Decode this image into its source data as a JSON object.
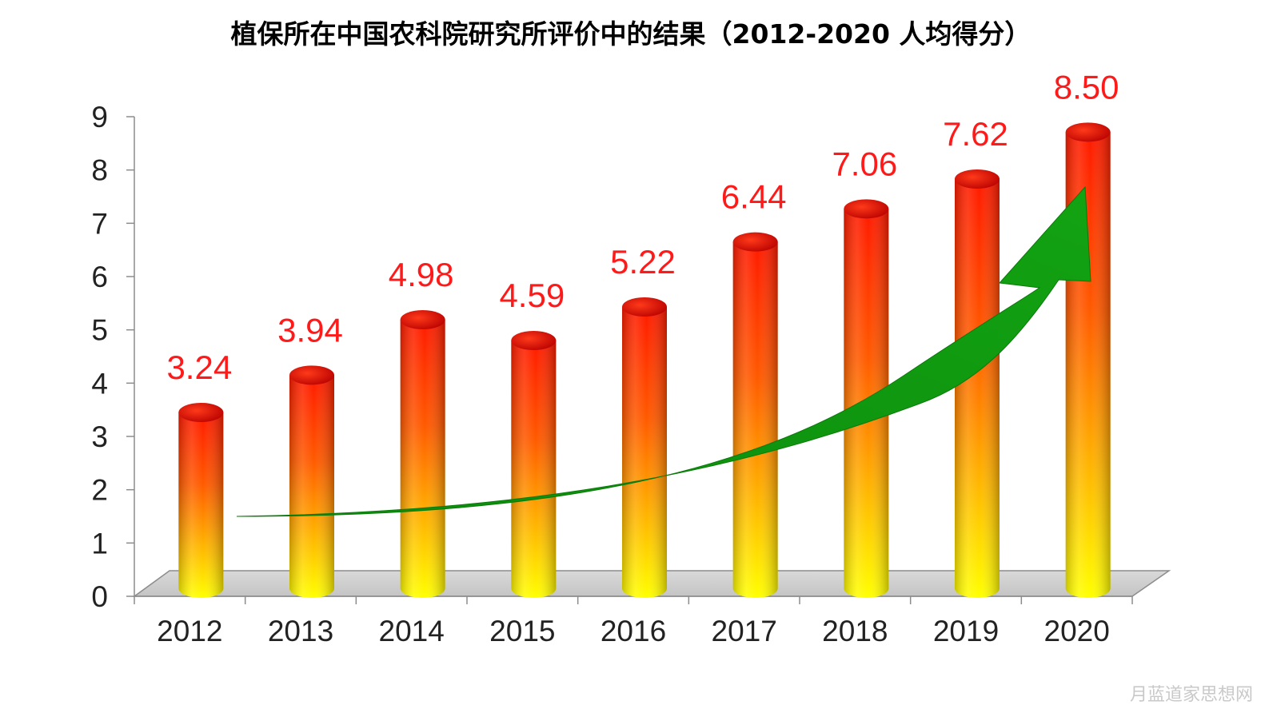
{
  "chart_data": {
    "type": "bar",
    "title": "植保所在中国农科院研究所评价中的结果（2012-2020  人均得分）",
    "categories": [
      "2012",
      "2013",
      "2014",
      "2015",
      "2016",
      "2017",
      "2018",
      "2019",
      "2020"
    ],
    "values": [
      3.24,
      3.94,
      4.98,
      4.59,
      5.22,
      6.44,
      7.06,
      7.62,
      8.5
    ],
    "value_labels": [
      "3.24",
      "3.94",
      "4.98",
      "4.59",
      "5.22",
      "6.44",
      "7.06",
      "7.62",
      "8.50"
    ],
    "ylim": [
      0,
      9
    ],
    "yticks": [
      "0",
      "1",
      "2",
      "3",
      "4",
      "5",
      "6",
      "7",
      "8",
      "9"
    ],
    "xlabel": "",
    "ylabel": "",
    "grid": false,
    "legend": "none",
    "bar_style": "3d-cylinder",
    "colors": {
      "bar_top": "#ff1a00",
      "bar_mid": "#ff8c00",
      "bar_bottom": "#ffff00",
      "trend_arrow": "#0a9a0a",
      "data_label": "#ff1a1a"
    },
    "annotations": [
      "green upward trend arrow"
    ]
  },
  "watermark": "月蓝道家思想网"
}
